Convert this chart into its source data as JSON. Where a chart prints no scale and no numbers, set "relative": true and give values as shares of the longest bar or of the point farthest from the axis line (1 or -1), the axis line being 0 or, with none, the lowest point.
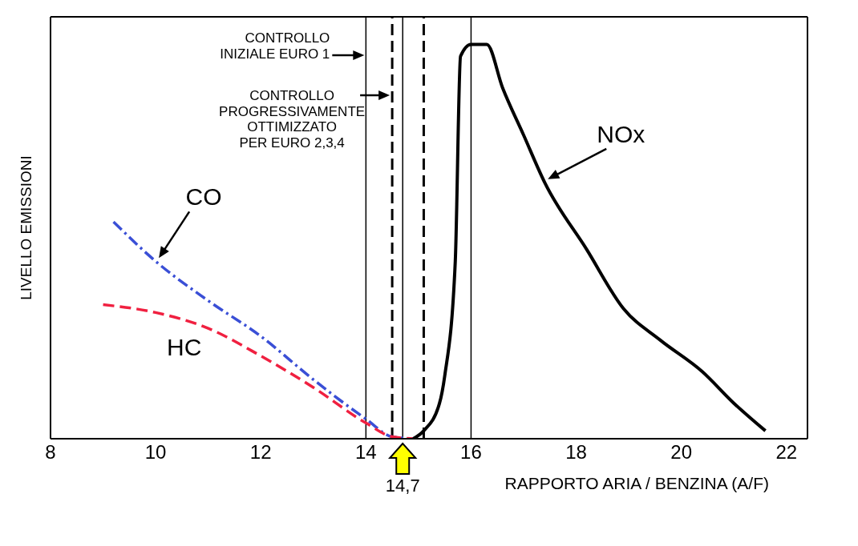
{
  "chart_data": {
    "type": "line",
    "relative": true,
    "xlabel": "RAPPORTO ARIA / BENZINA (A/F)",
    "ylabel": "LIVELLO EMISSIONI",
    "xlim": [
      8,
      22.4
    ],
    "xticks": [
      8,
      10,
      12,
      14,
      16,
      18,
      20,
      22
    ],
    "marker": "none",
    "series": [
      {
        "name": "CO",
        "color": "#3a4fd6",
        "line_style": "dashed",
        "x": [
          9.2,
          10,
          11,
          12,
          13,
          14,
          14.5,
          14.9
        ],
        "values": [
          0.55,
          0.45,
          0.35,
          0.26,
          0.15,
          0.05,
          0.005,
          0
        ]
      },
      {
        "name": "HC",
        "color": "#f02040",
        "line_style": "dashed",
        "x": [
          9,
          10,
          11,
          12,
          13,
          14,
          14.5,
          14.9
        ],
        "values": [
          0.34,
          0.32,
          0.28,
          0.21,
          0.13,
          0.04,
          0.005,
          0
        ]
      },
      {
        "name": "NOx",
        "color": "#000000",
        "line_style": "solid",
        "x": [
          14.9,
          15.1,
          15.4,
          15.5,
          15.7,
          15.8,
          16,
          16.3,
          16.6,
          17,
          17.4,
          18.2,
          18.9,
          19.6,
          20.4,
          21,
          21.6
        ],
        "values": [
          0,
          0.02,
          0.09,
          0.16,
          0.45,
          0.97,
          1,
          1,
          0.89,
          0.77,
          0.65,
          0.48,
          0.33,
          0.25,
          0.17,
          0.09,
          0.02
        ]
      }
    ],
    "ref_lines": [
      {
        "axis": "x",
        "value": 14,
        "label": "CONTROLLO\nINIZIALE EURO 1",
        "color": "#000000",
        "line_style": "solid"
      },
      {
        "axis": "x",
        "value": 14.5,
        "label": "CONTROLLO\nPROGRESSIVAMENTE\nOTTIMIZZATO\nPER EURO 2,3,4",
        "color": "#000000",
        "line_style": "dashed"
      },
      {
        "axis": "x",
        "value": 14.7,
        "label": "14,7",
        "color": "#000000",
        "line_style": "solid"
      },
      {
        "axis": "x",
        "value": 15.1,
        "color": "#000000",
        "line_style": "dashed"
      },
      {
        "axis": "x",
        "value": 16,
        "color": "#000000",
        "line_style": "solid"
      }
    ]
  }
}
